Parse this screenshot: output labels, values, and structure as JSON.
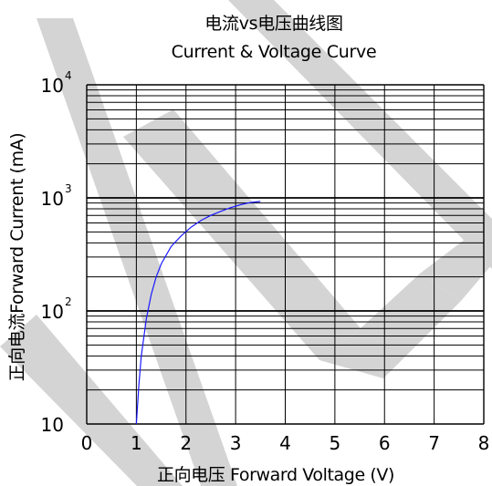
{
  "chart_data": {
    "type": "line",
    "title": "电流vs电压曲线图",
    "subtitle": "Current & Voltage Curve",
    "xlabel": "正向电压 Forward Voltage (V)",
    "ylabel": "正向电流Forward Current (mA)",
    "x_scale": "linear",
    "y_scale": "log",
    "xlim": [
      0,
      8
    ],
    "ylim": [
      10,
      10000
    ],
    "xticks": [
      "0",
      "1",
      "2",
      "3",
      "4",
      "5",
      "6",
      "7",
      "8"
    ],
    "yticks": [
      {
        "base": "10",
        "exp": ""
      },
      {
        "base": "10",
        "exp": "2"
      },
      {
        "base": "10",
        "exp": "3"
      },
      {
        "base": "10",
        "exp": "4"
      }
    ],
    "grid": true,
    "series": [
      {
        "color": "#1a1aff",
        "x": [
          1.0,
          1.05,
          1.1,
          1.2,
          1.3,
          1.4,
          1.5,
          1.7,
          1.9,
          2.1,
          2.3,
          2.5,
          2.7,
          2.9,
          3.1,
          3.3,
          3.5
        ],
        "y": [
          10,
          22,
          40,
          85,
          140,
          200,
          260,
          370,
          460,
          550,
          630,
          700,
          760,
          820,
          870,
          910,
          930
        ]
      }
    ]
  },
  "watermark_color": "#d4d4d4"
}
